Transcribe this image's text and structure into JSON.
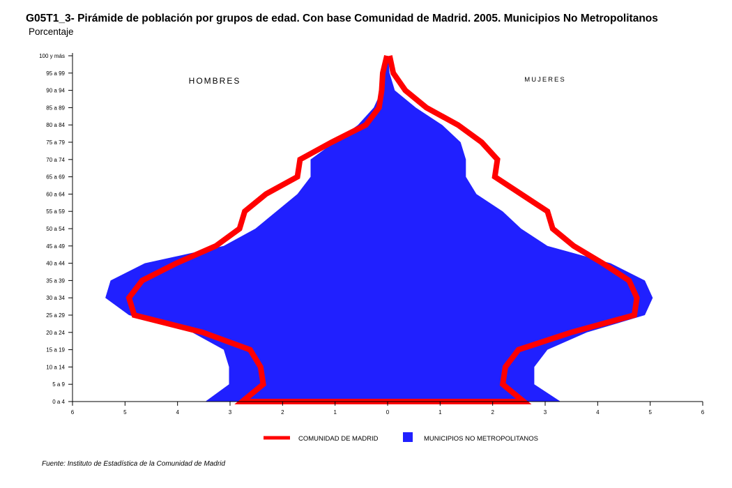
{
  "chart_data": {
    "type": "area",
    "title": "G05T1_3- Pirámide de población por grupos de edad.  Con base Comunidad de Madrid.  2005.  Municipios No Metropolitanos",
    "subtitle": "Porcentaje",
    "source": "Fuente: Instituto de Estadística de la Comunidad de Madrid",
    "left_side_label": "HOMBRES",
    "right_side_label": "MUJERES",
    "categories": [
      "0 a 4",
      "5 a 9",
      "10 a 14",
      "15 a 19",
      "20 a 24",
      "25 a 29",
      "30 a 34",
      "35 a 39",
      "40 a 44",
      "45 a 49",
      "50 a 54",
      "55 a 59",
      "60 a 64",
      "65 a 69",
      "70 a 74",
      "75 a 79",
      "80 a 84",
      "85 a 89",
      "90 a 94",
      "95 a 99",
      "100 y más"
    ],
    "x_ticks": [
      "6",
      "5",
      "4",
      "3",
      "2",
      "1",
      "0",
      "1",
      "2",
      "3",
      "4",
      "5",
      "6"
    ],
    "xlim": [
      -6,
      6
    ],
    "series": [
      {
        "name": "MUNICIPIOS NO METROPOLITANOS",
        "kind": "area",
        "color": "#2020ff",
        "hombres": [
          3.45,
          3.0,
          3.0,
          3.1,
          3.7,
          4.9,
          5.35,
          5.25,
          4.6,
          3.1,
          2.5,
          2.1,
          1.7,
          1.45,
          1.45,
          1.0,
          0.55,
          0.25,
          0.1,
          0.05,
          0.0
        ],
        "mujeres": [
          3.3,
          2.8,
          2.8,
          3.05,
          3.8,
          4.9,
          5.05,
          4.9,
          4.25,
          3.05,
          2.55,
          2.2,
          1.7,
          1.5,
          1.5,
          1.4,
          1.05,
          0.55,
          0.15,
          0.05,
          0.02
        ]
      },
      {
        "name": "COMUNIDAD DE MADRID",
        "kind": "line",
        "color": "#ff0000",
        "hombres": [
          2.75,
          2.35,
          2.4,
          2.6,
          3.5,
          4.8,
          4.9,
          4.65,
          4.0,
          3.25,
          2.8,
          2.7,
          2.3,
          1.7,
          1.65,
          1.05,
          0.4,
          0.15,
          0.1,
          0.08,
          0.0
        ],
        "mujeres": [
          2.6,
          2.2,
          2.25,
          2.5,
          3.5,
          4.7,
          4.75,
          4.6,
          4.1,
          3.55,
          3.15,
          3.05,
          2.55,
          2.05,
          2.1,
          1.8,
          1.35,
          0.75,
          0.35,
          0.12,
          0.05
        ]
      }
    ],
    "legend": [
      {
        "label": "COMUNIDAD DE MADRID",
        "kind": "line",
        "color": "#ff0000"
      },
      {
        "label": "MUNICIPIOS NO METROPOLITANOS",
        "kind": "box",
        "color": "#2020ff"
      }
    ],
    "legend_position": "bottom"
  }
}
